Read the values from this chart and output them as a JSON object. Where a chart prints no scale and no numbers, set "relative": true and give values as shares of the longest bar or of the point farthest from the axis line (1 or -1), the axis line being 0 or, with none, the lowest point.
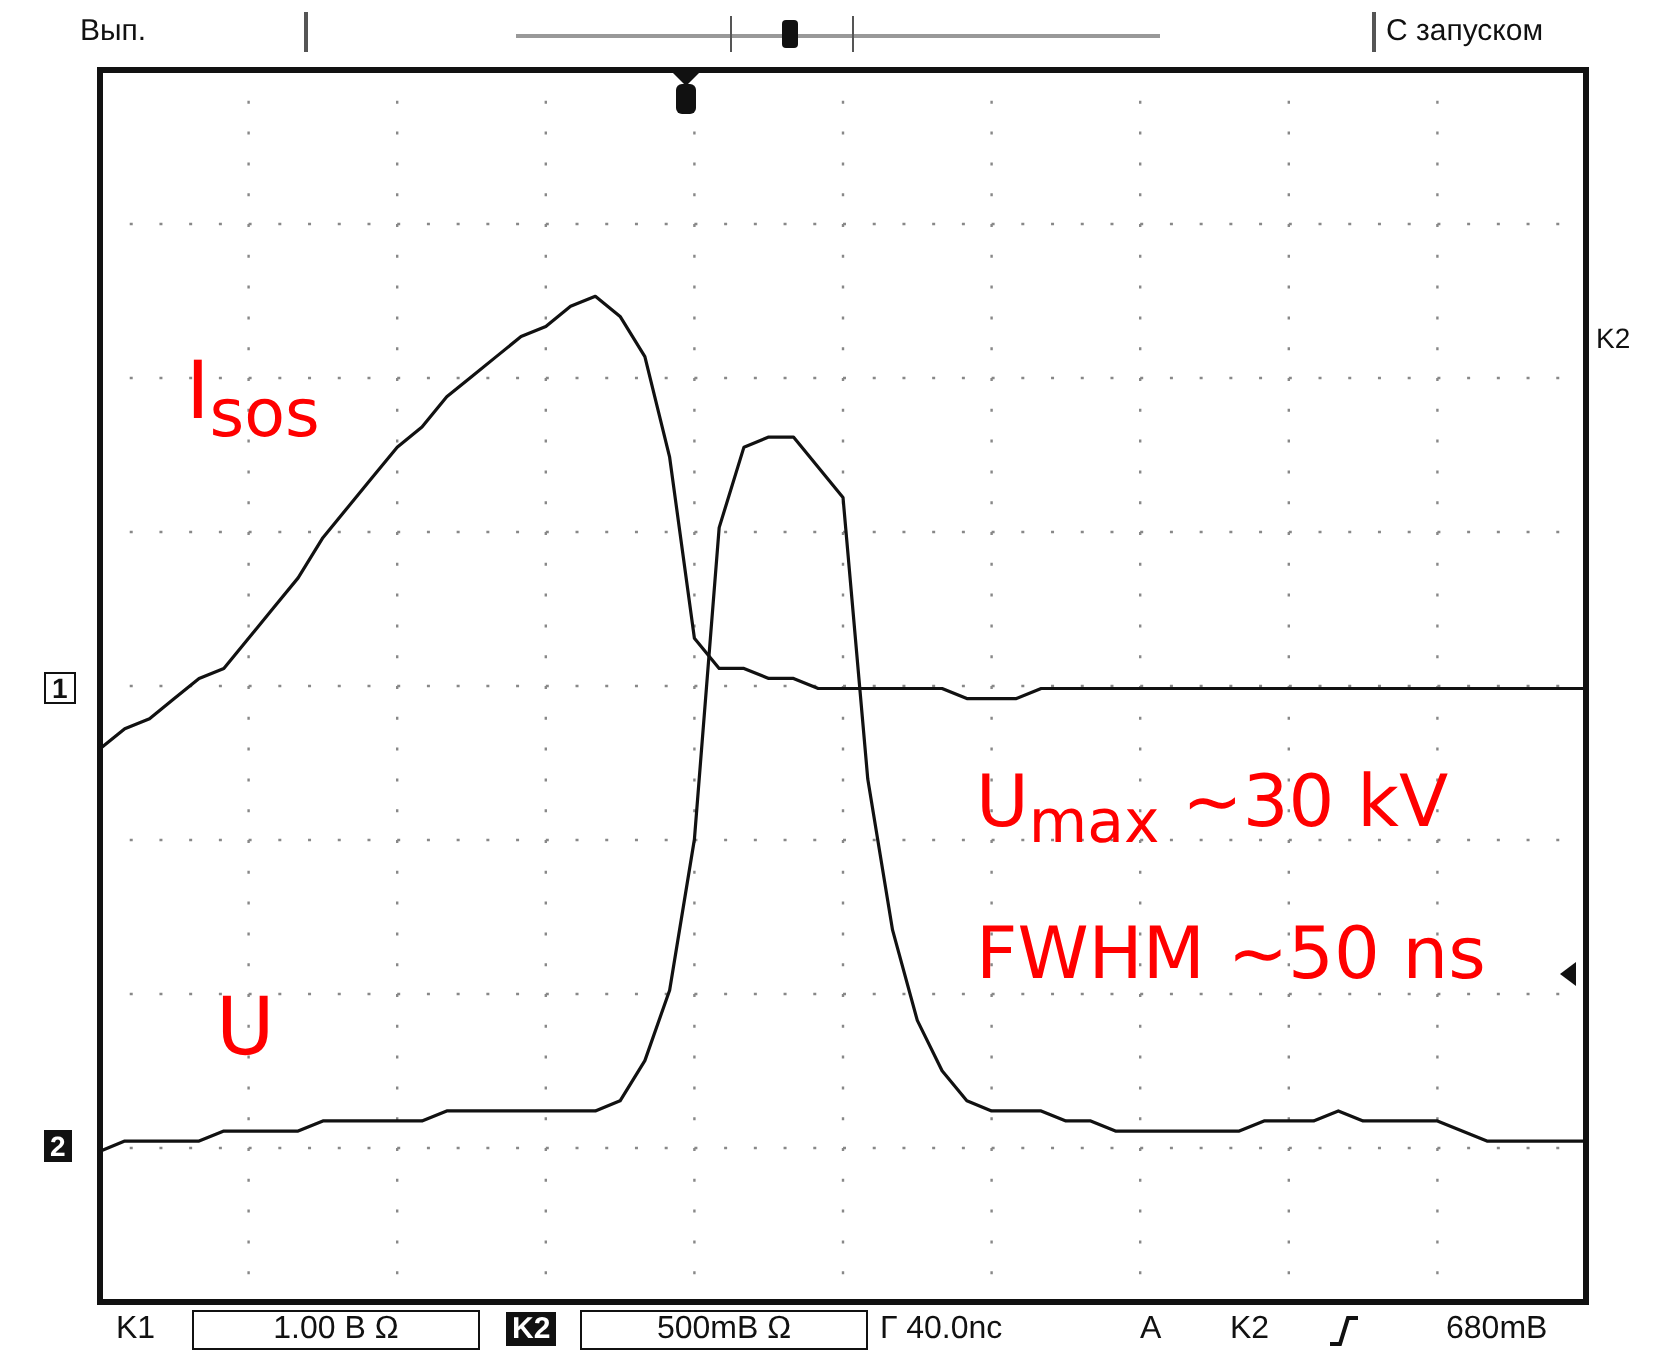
{
  "chart_data": {
    "type": "line",
    "relative": true,
    "grid": true,
    "legend": false,
    "marker": "none",
    "line_style": "solid",
    "categories": [
      null,
      null,
      null,
      null,
      null,
      null,
      null,
      null,
      null,
      null,
      null,
      null,
      null,
      null,
      null,
      null,
      null,
      null,
      null,
      null,
      null,
      null,
      null,
      null,
      null,
      null,
      null,
      null,
      null,
      null,
      null,
      null,
      null,
      null,
      null,
      null,
      null,
      null,
      null,
      null,
      null,
      null,
      null,
      null,
      null,
      null,
      null,
      null,
      null,
      null,
      null,
      null,
      null,
      null,
      null,
      null,
      null,
      null,
      null,
      null,
      null
    ],
    "series": [
      {
        "name": "I$_{sos}$",
        "color": "#111111",
        "values": [
          0.55,
          0.57,
          0.58,
          0.6,
          0.62,
          0.63,
          0.66,
          0.69,
          0.72,
          0.76,
          0.79,
          0.82,
          0.85,
          0.87,
          0.9,
          0.92,
          0.94,
          0.96,
          0.97,
          0.99,
          1,
          0.98,
          0.94,
          0.84,
          0.66,
          0.63,
          0.63,
          0.62,
          0.62,
          0.61,
          0.61,
          0.61,
          0.61,
          0.61,
          0.61,
          0.6,
          0.6,
          0.6,
          0.61,
          0.61,
          0.61,
          0.61,
          0.61,
          0.61,
          0.61,
          0.61,
          0.61,
          0.61,
          0.61,
          0.61,
          0.61,
          0.61,
          0.61,
          0.61,
          0.61,
          0.61,
          0.61,
          0.61,
          0.61,
          0.61,
          0.61
        ]
      },
      {
        "name": "U",
        "color": "#111111",
        "values": [
          0.15,
          0.16,
          0.16,
          0.16,
          0.16,
          0.17,
          0.17,
          0.17,
          0.17,
          0.18,
          0.18,
          0.18,
          0.18,
          0.18,
          0.19,
          0.19,
          0.19,
          0.19,
          0.19,
          0.19,
          0.19,
          0.2,
          0.24,
          0.31,
          0.46,
          0.77,
          0.85,
          0.86,
          0.86,
          0.83,
          0.8,
          0.52,
          0.37,
          0.28,
          0.23,
          0.2,
          0.19,
          0.19,
          0.19,
          0.18,
          0.18,
          0.17,
          0.17,
          0.17,
          0.17,
          0.17,
          0.17,
          0.18,
          0.18,
          0.18,
          0.19,
          0.18,
          0.18,
          0.18,
          0.18,
          0.17,
          0.16,
          0.16,
          0.16,
          0.16,
          0.16
        ]
      }
    ],
    "annotations": [
      "U$_{max}$ ~30 kV",
      "FWHM ~50 ns",
      "Вып.",
      "С запуском",
      "K2",
      "1",
      "2",
      "K1",
      "1.00 B Ω",
      "K2",
      "500mB Ω",
      "Г 40.0nc",
      "A",
      "K2",
      "680mB"
    ]
  }
}
